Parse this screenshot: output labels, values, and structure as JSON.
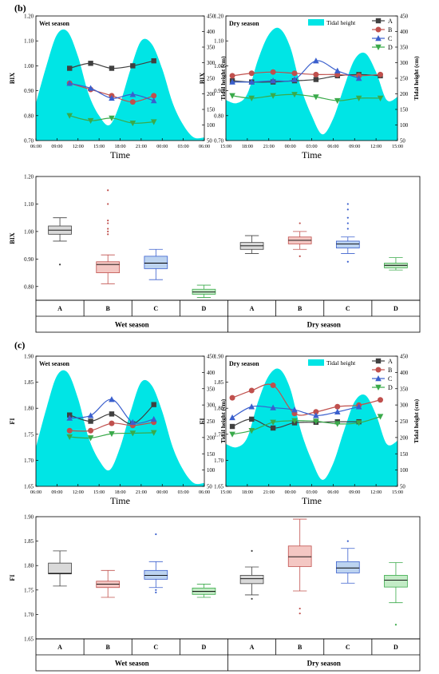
{
  "figure": {
    "panel_b_label": "(b)",
    "panel_c_label": "(c)",
    "colors": {
      "A": "#404040",
      "B": "#c0504d",
      "C": "#3a5fcd",
      "D": "#3aaa4a",
      "tide": "#00e5e5"
    }
  },
  "chart_data": [
    {
      "id": "b1",
      "type": "line",
      "title": "Wet season",
      "xlabel": "Time",
      "ylabel": "BIX",
      "y2label": "Tidal height (cm)",
      "x_ticks": [
        "06:00",
        "09:00",
        "12:00",
        "15:00",
        "18:00",
        "21:00",
        "00:00",
        "03:00",
        "06:00"
      ],
      "ylim": [
        0.7,
        1.2
      ],
      "y_ticks": [
        "0.70",
        "0.80",
        "0.90",
        "1.00",
        "1.10",
        "1.20"
      ],
      "y2lim": [
        50,
        450
      ],
      "y2_ticks": [
        "50",
        "100",
        "150",
        "200",
        "250",
        "300",
        "350",
        "400",
        "450"
      ],
      "legend": "none",
      "tidal": {
        "x": [
          0,
          0.5,
          1,
          1.5,
          2,
          2.5,
          3,
          3.5,
          4,
          4.5,
          5,
          5.5,
          6,
          6.5,
          7,
          7.5,
          8
        ],
        "y": [
          170,
          290,
          390,
          400,
          320,
          200,
          130,
          100,
          170,
          280,
          370,
          360,
          280,
          170,
          100,
          60,
          60
        ]
      },
      "series": [
        {
          "name": "A",
          "marker": "square",
          "x": [
            1.6,
            2.6,
            3.6,
            4.6,
            5.6
          ],
          "y": [
            0.99,
            1.01,
            0.99,
            1.0,
            1.02
          ]
        },
        {
          "name": "B",
          "marker": "circle",
          "x": [
            1.6,
            2.6,
            3.6,
            4.6,
            5.6
          ],
          "y": [
            0.93,
            0.905,
            0.88,
            0.855,
            0.88
          ]
        },
        {
          "name": "C",
          "marker": "triangle-up",
          "x": [
            1.6,
            2.6,
            3.6,
            4.6,
            5.6
          ],
          "y": [
            0.93,
            0.91,
            0.87,
            0.885,
            0.86
          ]
        },
        {
          "name": "D",
          "marker": "triangle-down",
          "x": [
            1.6,
            2.6,
            3.6,
            4.6,
            5.6
          ],
          "y": [
            0.8,
            0.78,
            0.79,
            0.77,
            0.775
          ]
        }
      ]
    },
    {
      "id": "b2",
      "type": "line",
      "title": "Dry season",
      "xlabel": "Time",
      "ylabel": "BIX",
      "y2label": "Tidal height (cm)",
      "x_ticks": [
        "15:00",
        "18:00",
        "21:00",
        "00:00",
        "03:00",
        "06:00",
        "09:00",
        "12:00",
        "15:00"
      ],
      "ylim": [
        0.7,
        1.2
      ],
      "y_ticks": [
        "0.70",
        "0.80",
        "0.90",
        "1.00",
        "1.10",
        "1.20"
      ],
      "y2lim": [
        50,
        450
      ],
      "y2_ticks": [
        "50",
        "100",
        "150",
        "200",
        "250",
        "300",
        "350",
        "400",
        "450"
      ],
      "legend": "top-right",
      "legend_tide": "Tidal height",
      "tidal": {
        "x": [
          0,
          0.5,
          1,
          1.5,
          2,
          2.5,
          3,
          3.5,
          4,
          4.5,
          5,
          5.5,
          6,
          6.5,
          7,
          7.5,
          8
        ],
        "y": [
          180,
          170,
          200,
          310,
          390,
          410,
          350,
          220,
          130,
          70,
          120,
          220,
          310,
          330,
          270,
          180,
          190
        ]
      },
      "series": [
        {
          "name": "A",
          "marker": "square",
          "x": [
            0.3,
            1.2,
            2.2,
            3.2,
            4.2,
            5.2,
            6.2,
            7.2
          ],
          "y": [
            0.94,
            0.935,
            0.935,
            0.94,
            0.945,
            0.96,
            0.965,
            0.96
          ]
        },
        {
          "name": "B",
          "marker": "circle",
          "x": [
            0.3,
            1.2,
            2.2,
            3.2,
            4.2,
            5.2,
            6.2,
            7.2
          ],
          "y": [
            0.96,
            0.97,
            0.975,
            0.97,
            0.965,
            0.965,
            0.96,
            0.965
          ]
        },
        {
          "name": "C",
          "marker": "triangle-up",
          "x": [
            0.3,
            1.2,
            2.2,
            3.2,
            4.2,
            5.2,
            6.2
          ],
          "y": [
            0.935,
            0.935,
            0.94,
            0.945,
            1.02,
            0.98,
            0.95
          ]
        },
        {
          "name": "D",
          "marker": "triangle-down",
          "x": [
            0.3,
            1.2,
            2.2,
            3.2,
            4.2,
            5.2,
            6.2,
            7.2
          ],
          "y": [
            0.88,
            0.87,
            0.88,
            0.885,
            0.875,
            0.86,
            0.87,
            0.87
          ]
        }
      ]
    },
    {
      "id": "b3",
      "type": "box",
      "ylabel": "BIX",
      "ylim": [
        0.75,
        1.2
      ],
      "y_ticks": [
        "0.80",
        "0.90",
        "1.00",
        "1.10",
        "1.20"
      ],
      "categories": [
        "A",
        "B",
        "C",
        "D",
        "A",
        "B",
        "C",
        "D"
      ],
      "groups": [
        "Wet season",
        "Dry season"
      ],
      "boxes": [
        {
          "site": "A",
          "min": 0.965,
          "q1": 0.99,
          "median": 1.005,
          "q3": 1.02,
          "max": 1.05,
          "outliers": [
            0.88
          ]
        },
        {
          "site": "B",
          "min": 0.81,
          "q1": 0.85,
          "median": 0.88,
          "q3": 0.89,
          "max": 0.915,
          "outliers": [
            0.99,
            1.0,
            1.01,
            1.03,
            1.04,
            1.1,
            1.15
          ]
        },
        {
          "site": "C",
          "min": 0.825,
          "q1": 0.865,
          "median": 0.885,
          "q3": 0.91,
          "max": 0.935,
          "outliers": []
        },
        {
          "site": "D",
          "min": 0.76,
          "q1": 0.772,
          "median": 0.78,
          "q3": 0.79,
          "max": 0.805,
          "outliers": []
        },
        {
          "site": "A",
          "min": 0.92,
          "q1": 0.935,
          "median": 0.948,
          "q3": 0.96,
          "max": 0.985,
          "outliers": []
        },
        {
          "site": "B",
          "min": 0.935,
          "q1": 0.955,
          "median": 0.968,
          "q3": 0.98,
          "max": 1.0,
          "outliers": [
            0.91,
            1.03
          ]
        },
        {
          "site": "C",
          "min": 0.92,
          "q1": 0.94,
          "median": 0.955,
          "q3": 0.965,
          "max": 0.98,
          "outliers": [
            0.89,
            1.01,
            1.03,
            1.05,
            1.08,
            1.1
          ]
        },
        {
          "site": "D",
          "min": 0.86,
          "q1": 0.868,
          "median": 0.877,
          "q3": 0.885,
          "max": 0.905,
          "outliers": []
        }
      ]
    },
    {
      "id": "c1",
      "type": "line",
      "title": "Wet season",
      "xlabel": "Time",
      "ylabel": "FI",
      "y2label": "Tidal height (cm)",
      "x_ticks": [
        "06:00",
        "09:00",
        "12:00",
        "15:00",
        "18:00",
        "21:00",
        "00:00",
        "03:00",
        "06:00"
      ],
      "ylim": [
        1.65,
        1.9
      ],
      "y_ticks": [
        "1.65",
        "1.70",
        "1.75",
        "1.80",
        "1.85",
        "1.90"
      ],
      "y2lim": [
        50,
        450
      ],
      "y2_ticks": [
        "50",
        "100",
        "150",
        "200",
        "250",
        "300",
        "350",
        "400",
        "450"
      ],
      "legend": "none",
      "tidal": {
        "x": [
          0,
          0.5,
          1,
          1.5,
          2,
          2.5,
          3,
          3.5,
          4,
          4.5,
          5,
          5.5,
          6,
          6.5,
          7,
          7.5,
          8
        ],
        "y": [
          170,
          290,
          390,
          400,
          320,
          200,
          130,
          100,
          170,
          280,
          370,
          360,
          280,
          170,
          100,
          60,
          60
        ]
      },
      "series": [
        {
          "name": "A",
          "marker": "square",
          "x": [
            1.6,
            2.6,
            3.6,
            4.6,
            5.6
          ],
          "y": [
            1.787,
            1.775,
            1.789,
            1.77,
            1.807
          ]
        },
        {
          "name": "B",
          "marker": "circle",
          "x": [
            1.6,
            2.6,
            3.6,
            4.6,
            5.6
          ],
          "y": [
            1.757,
            1.757,
            1.771,
            1.767,
            1.773
          ]
        },
        {
          "name": "C",
          "marker": "triangle-up",
          "x": [
            1.6,
            2.6,
            3.6,
            4.6,
            5.6
          ],
          "y": [
            1.781,
            1.786,
            1.817,
            1.773,
            1.779
          ]
        },
        {
          "name": "D",
          "marker": "triangle-down",
          "x": [
            1.6,
            2.6,
            3.6,
            4.6,
            5.6
          ],
          "y": [
            1.745,
            1.743,
            1.751,
            1.752,
            1.753
          ]
        }
      ]
    },
    {
      "id": "c2",
      "type": "line",
      "title": "Dry season",
      "xlabel": "Time",
      "ylabel": "FI",
      "y2label": "Tidal height (cm)",
      "x_ticks": [
        "15:00",
        "18:00",
        "21:00",
        "00:00",
        "03:00",
        "06:00",
        "09:00",
        "12:00",
        "15:00"
      ],
      "ylim": [
        1.65,
        1.9
      ],
      "y_ticks": [
        "1.65",
        "1.70",
        "1.75",
        "1.80",
        "1.85",
        "1.90"
      ],
      "y2lim": [
        50,
        450
      ],
      "y2_ticks": [
        "50",
        "100",
        "150",
        "200",
        "250",
        "300",
        "350",
        "400",
        "450"
      ],
      "legend": "top-right",
      "legend_tide": "Tidal height",
      "tidal": {
        "x": [
          0,
          0.5,
          1,
          1.5,
          2,
          2.5,
          3,
          3.5,
          4,
          4.5,
          5,
          5.5,
          6,
          6.5,
          7,
          7.5,
          8
        ],
        "y": [
          180,
          170,
          200,
          310,
          390,
          410,
          350,
          220,
          130,
          70,
          120,
          220,
          310,
          330,
          270,
          180,
          190
        ]
      },
      "series": [
        {
          "name": "A",
          "marker": "square",
          "x": [
            0.3,
            1.2,
            2.2,
            3.2,
            4.2,
            5.2,
            6.2
          ],
          "y": [
            1.765,
            1.779,
            1.762,
            1.772,
            1.773,
            1.774,
            1.774
          ]
        },
        {
          "name": "B",
          "marker": "circle",
          "x": [
            0.3,
            1.2,
            2.2,
            3.2,
            4.2,
            5.2,
            6.2,
            7.2
          ],
          "y": [
            1.82,
            1.834,
            1.844,
            1.79,
            1.793,
            1.803,
            1.806,
            1.816
          ]
        },
        {
          "name": "C",
          "marker": "triangle-up",
          "x": [
            0.3,
            1.2,
            2.2,
            3.2,
            4.2,
            5.2,
            6.2
          ],
          "y": [
            1.782,
            1.803,
            1.801,
            1.797,
            1.786,
            1.793,
            1.803
          ]
        },
        {
          "name": "D",
          "marker": "triangle-down",
          "x": [
            0.3,
            1.2,
            2.2,
            3.2,
            4.2,
            5.2,
            6.2,
            7.2
          ],
          "y": [
            1.75,
            1.757,
            1.773,
            1.776,
            1.775,
            1.77,
            1.772,
            1.784
          ]
        }
      ]
    },
    {
      "id": "c3",
      "type": "box",
      "ylabel": "FI",
      "ylim": [
        1.65,
        1.9
      ],
      "y_ticks": [
        "1.65",
        "1.70",
        "1.75",
        "1.80",
        "1.85",
        "1.90"
      ],
      "categories": [
        "A",
        "B",
        "C",
        "D",
        "A",
        "B",
        "C",
        "D"
      ],
      "groups": [
        "Wet season",
        "Dry season"
      ],
      "boxes": [
        {
          "site": "A",
          "min": 1.758,
          "q1": 1.783,
          "median": 1.784,
          "q3": 1.805,
          "max": 1.83,
          "outliers": []
        },
        {
          "site": "B",
          "min": 1.735,
          "q1": 1.755,
          "median": 1.762,
          "q3": 1.768,
          "max": 1.79,
          "outliers": []
        },
        {
          "site": "C",
          "min": 1.755,
          "q1": 1.772,
          "median": 1.78,
          "q3": 1.79,
          "max": 1.808,
          "outliers": [
            1.745,
            1.75,
            1.864
          ]
        },
        {
          "site": "D",
          "min": 1.735,
          "q1": 1.741,
          "median": 1.747,
          "q3": 1.754,
          "max": 1.762,
          "outliers": []
        },
        {
          "site": "A",
          "min": 1.74,
          "q1": 1.763,
          "median": 1.773,
          "q3": 1.78,
          "max": 1.797,
          "outliers": [
            1.732,
            1.83
          ]
        },
        {
          "site": "B",
          "min": 1.748,
          "q1": 1.798,
          "median": 1.818,
          "q3": 1.84,
          "max": 1.895,
          "outliers": [
            1.702,
            1.712
          ]
        },
        {
          "site": "C",
          "min": 1.764,
          "q1": 1.785,
          "median": 1.795,
          "q3": 1.808,
          "max": 1.835,
          "outliers": [
            1.85
          ]
        },
        {
          "site": "D",
          "min": 1.724,
          "q1": 1.756,
          "median": 1.77,
          "q3": 1.78,
          "max": 1.806,
          "outliers": [
            1.679
          ]
        }
      ]
    }
  ]
}
